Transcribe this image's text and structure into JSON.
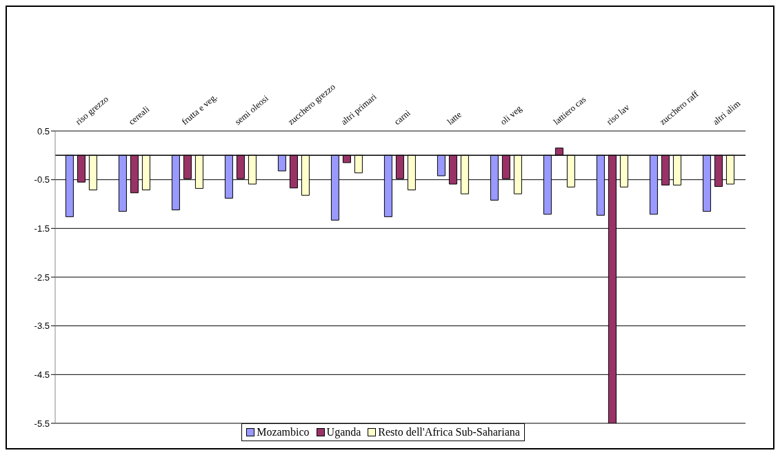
{
  "chart_data": {
    "type": "bar",
    "categories": [
      "riso grezzo",
      "cereali",
      "frutta e veg.",
      "semi oleosi",
      "zucchero grezzo",
      "altri primari",
      "carni",
      "latte",
      "oli veg",
      "lattiero cas",
      "riso lav",
      "zucchero raff",
      "altri alim"
    ],
    "series": [
      {
        "name": "Mozambico",
        "color": "#9999ff",
        "values": [
          -1.26,
          -1.15,
          -1.12,
          -0.88,
          -0.32,
          -1.33,
          -1.26,
          -0.42,
          -0.92,
          -1.21,
          -1.23,
          -1.21,
          -1.15
        ]
      },
      {
        "name": "Uganda",
        "color": "#993366",
        "values": [
          -0.55,
          -0.77,
          -0.48,
          -0.48,
          -0.67,
          -0.15,
          -0.48,
          -0.59,
          -0.48,
          0.15,
          -5.5,
          -0.61,
          -0.64
        ]
      },
      {
        "name": "Resto dell'Africa  Sub-Sahariana",
        "color": "#ffffcc",
        "values": [
          -0.71,
          -0.71,
          -0.68,
          -0.59,
          -0.82,
          -0.36,
          -0.71,
          -0.79,
          -0.79,
          -0.65,
          -0.65,
          -0.61,
          -0.59
        ]
      }
    ],
    "ylim": [
      -5.5,
      0.5
    ],
    "yticks": [
      0.5,
      -0.5,
      -1.5,
      -2.5,
      -3.5,
      -4.5,
      -5.5
    ],
    "grid": "y",
    "legend": "bottom"
  }
}
